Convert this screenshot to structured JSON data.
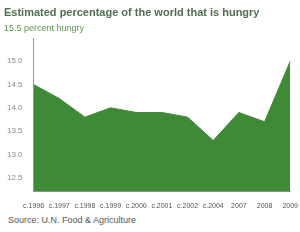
{
  "chart_data": {
    "type": "area",
    "title": "Estimated percentage of the world that is hungry",
    "subtitle": "15.5 percent hungry",
    "annotations": [
      "Source: U.N. Food & Agriculture"
    ],
    "categories": [
      "c.1996",
      "c.1997",
      "c.1998",
      "c.1999",
      "c.2000",
      "c.2001",
      "c.2002",
      "c.2004",
      "2007",
      "2008",
      "2009"
    ],
    "values": [
      14.5,
      14.2,
      13.8,
      14.0,
      13.9,
      13.9,
      13.8,
      13.3,
      13.9,
      13.7,
      15.0
    ],
    "color": "#3f8a36",
    "ylim": [
      12.2,
      15.5
    ],
    "yticks": [
      12.5,
      {
        "value": 13,
        "label": "13.0"
      },
      13.5,
      {
        "value": 14,
        "label": "14.0"
      },
      14.5,
      {
        "value": 15,
        "label": "15.0"
      }
    ],
    "grid": false
  }
}
